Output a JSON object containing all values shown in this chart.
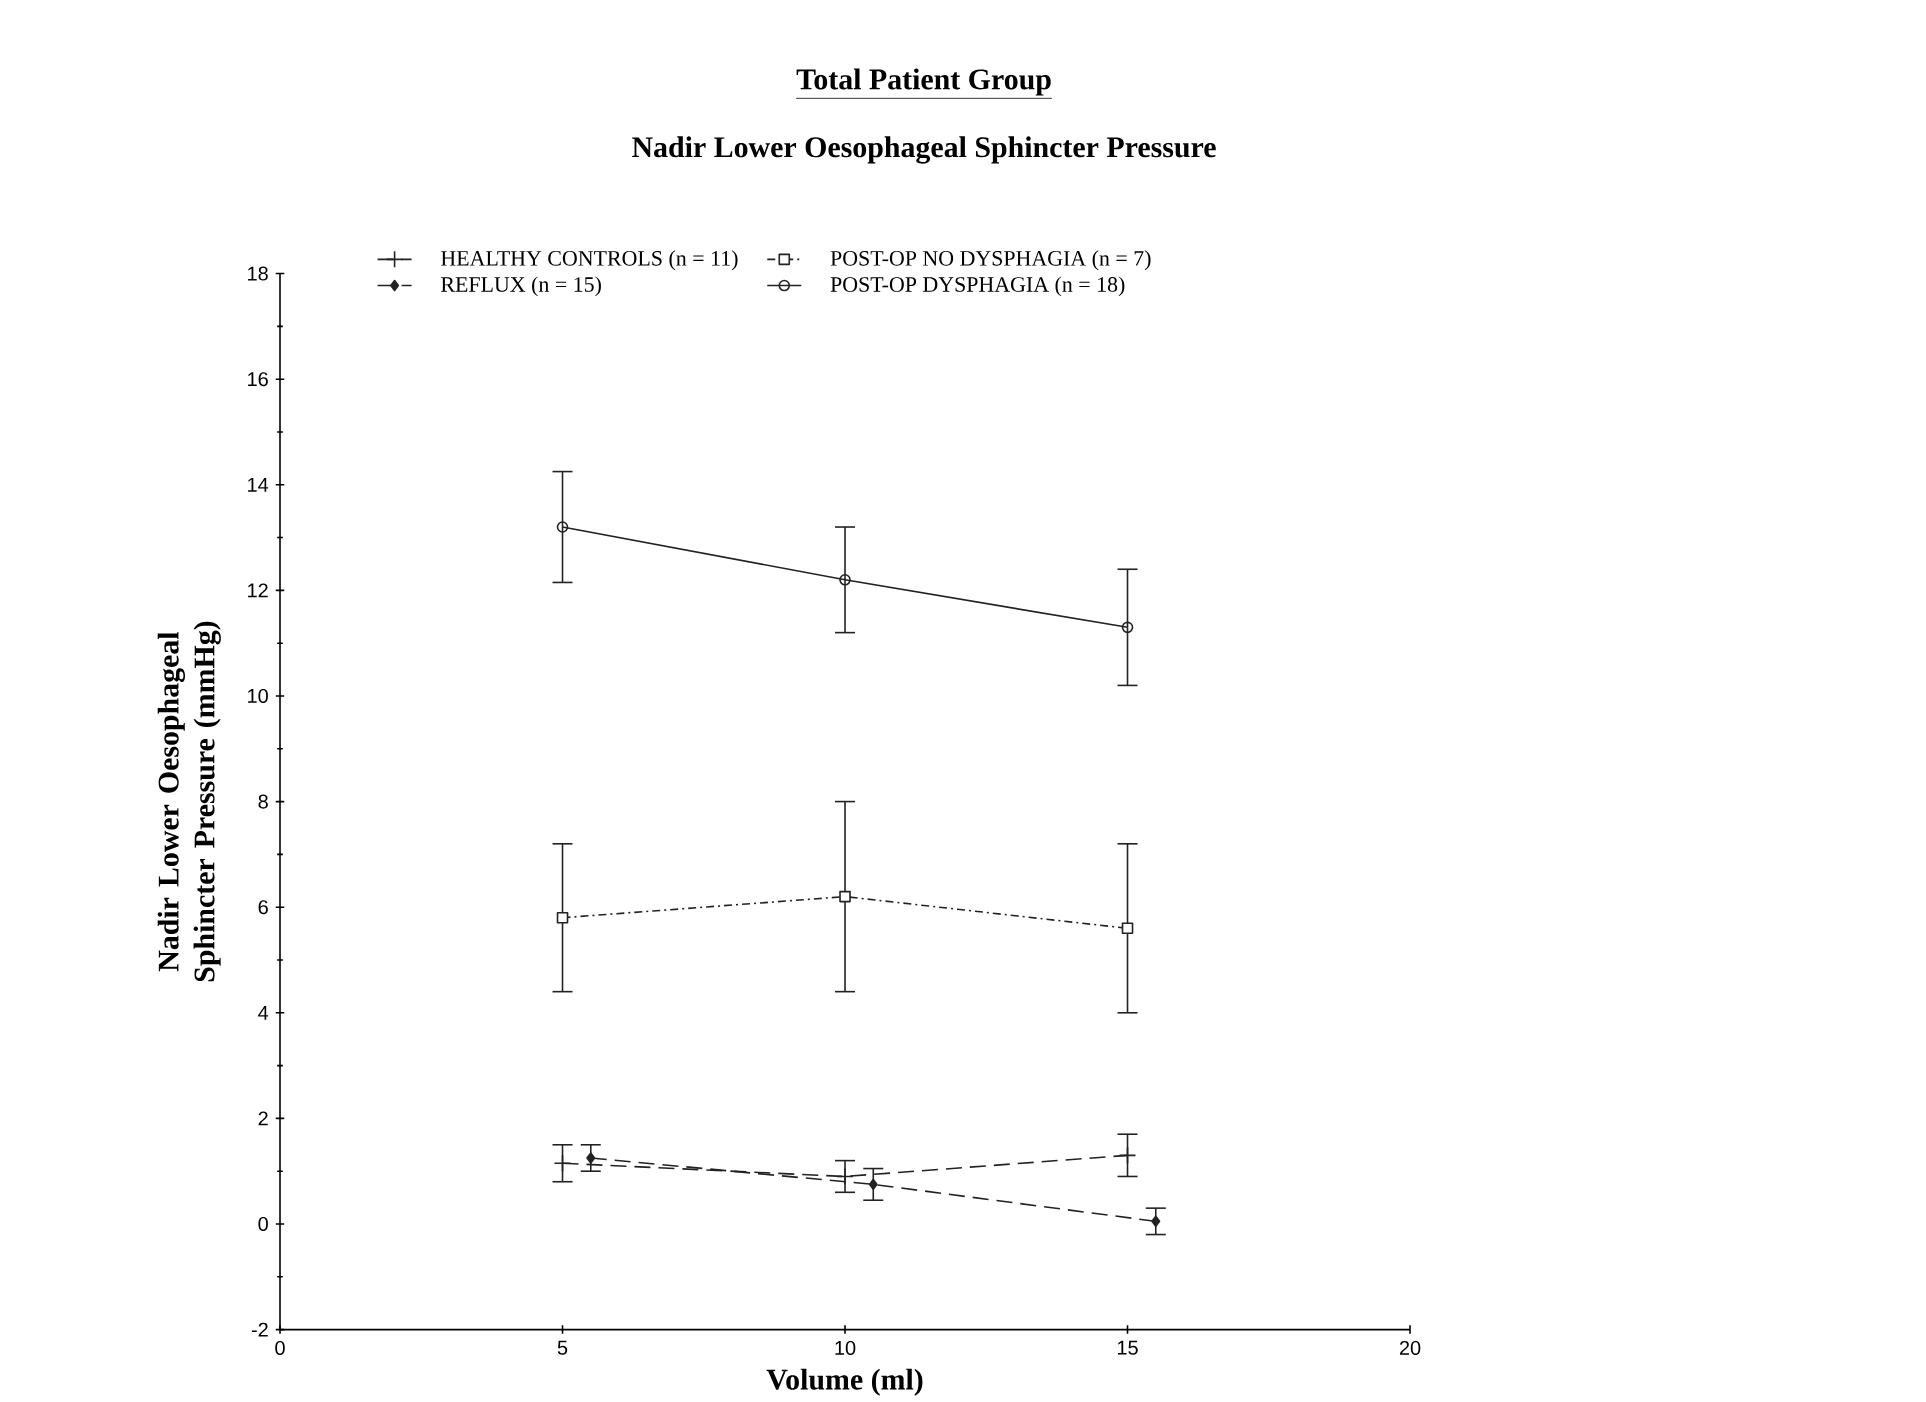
{
  "chart_data": {
    "type": "line",
    "title": "Total Patient Group",
    "subtitle": "Nadir Lower Oesophageal Sphincter Pressure",
    "xlabel": "Volume (ml)",
    "ylabel": "Nadir Lower Oesophageal Sphincter Pressure (mmHg)",
    "xlim": [
      0,
      20
    ],
    "xticks": [
      0,
      5,
      10,
      15,
      20
    ],
    "ylim": [
      -2,
      18
    ],
    "yticks": [
      -2,
      0,
      2,
      4,
      6,
      8,
      10,
      12,
      14,
      16,
      18
    ],
    "legend": "top",
    "grid": false,
    "series": [
      {
        "name": "HEALTHY CONTROLS (n = 11)",
        "color": "#222222",
        "marker": "cross",
        "line_style": "dashed",
        "x": [
          5,
          10,
          15
        ],
        "values": [
          1.15,
          0.9,
          1.3
        ],
        "errors": [
          0.35,
          0.3,
          0.4
        ]
      },
      {
        "name": "POST-OP NO DYSPHAGIA (n = 7)",
        "color": "#222222",
        "marker": "square",
        "line_style": "dotted",
        "x": [
          5,
          10,
          15
        ],
        "values": [
          5.8,
          6.2,
          5.6
        ],
        "errors": [
          1.4,
          1.8,
          1.6
        ]
      },
      {
        "name": "REFLUX (n = 15)",
        "color": "#222222",
        "marker": "diamond",
        "line_style": "dashed",
        "x": [
          5.5,
          10.5,
          15.5
        ],
        "values": [
          1.25,
          0.75,
          0.05
        ],
        "errors": [
          0.25,
          0.3,
          0.25
        ]
      },
      {
        "name": "POST-OP DYSPHAGIA (n = 18)",
        "color": "#222222",
        "marker": "circle",
        "line_style": "solid",
        "x": [
          5,
          10,
          15
        ],
        "values": [
          13.2,
          12.2,
          11.3
        ],
        "errors": [
          1.05,
          1.0,
          1.1
        ]
      }
    ]
  }
}
